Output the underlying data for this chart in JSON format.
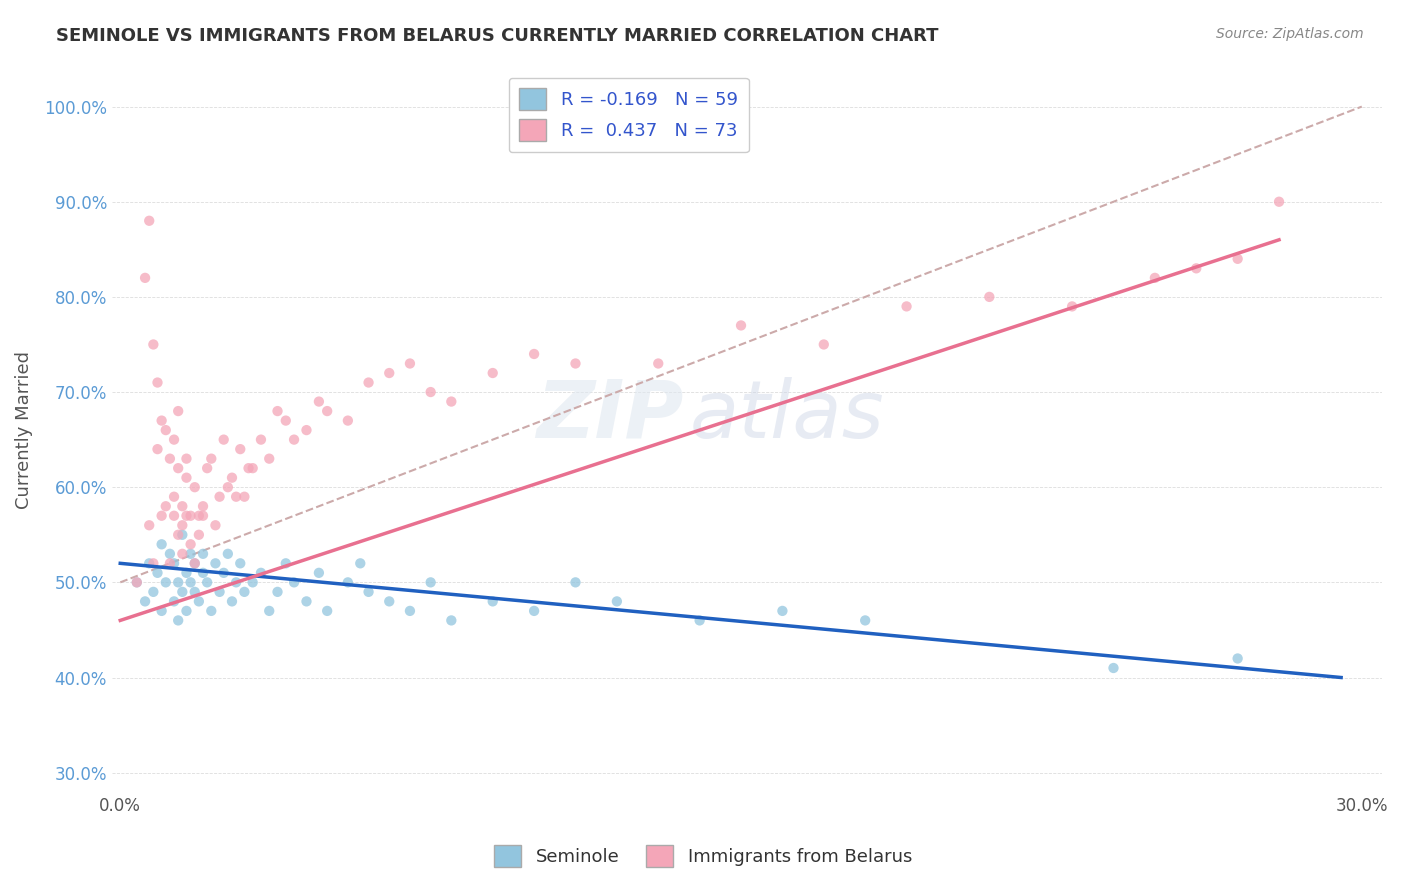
{
  "title": "SEMINOLE VS IMMIGRANTS FROM BELARUS CURRENTLY MARRIED CORRELATION CHART",
  "source_text": "Source: ZipAtlas.com",
  "ylabel": "Currently Married",
  "xlim": [
    -0.002,
    0.305
  ],
  "ylim": [
    0.28,
    1.04
  ],
  "legend1_label": "R = -0.169   N = 59",
  "legend2_label": "R =  0.437   N = 73",
  "seminole_color": "#92C5DE",
  "belarus_color": "#F4A6B8",
  "blue_line_color": "#2060C0",
  "pink_line_color": "#E87090",
  "dash_line_color": "#CCAAAA",
  "watermark_zip": "ZIP",
  "watermark_atlas": "atlas",
  "blue_scatter_x": [
    0.004,
    0.006,
    0.007,
    0.008,
    0.009,
    0.01,
    0.01,
    0.011,
    0.012,
    0.013,
    0.013,
    0.014,
    0.014,
    0.015,
    0.015,
    0.016,
    0.016,
    0.017,
    0.017,
    0.018,
    0.018,
    0.019,
    0.02,
    0.02,
    0.021,
    0.022,
    0.023,
    0.024,
    0.025,
    0.026,
    0.027,
    0.028,
    0.029,
    0.03,
    0.032,
    0.034,
    0.036,
    0.038,
    0.04,
    0.042,
    0.045,
    0.048,
    0.05,
    0.055,
    0.058,
    0.06,
    0.065,
    0.07,
    0.075,
    0.08,
    0.09,
    0.1,
    0.11,
    0.12,
    0.14,
    0.16,
    0.18,
    0.24,
    0.27
  ],
  "blue_scatter_y": [
    0.5,
    0.48,
    0.52,
    0.49,
    0.51,
    0.54,
    0.47,
    0.5,
    0.53,
    0.48,
    0.52,
    0.5,
    0.46,
    0.55,
    0.49,
    0.51,
    0.47,
    0.53,
    0.5,
    0.49,
    0.52,
    0.48,
    0.51,
    0.53,
    0.5,
    0.47,
    0.52,
    0.49,
    0.51,
    0.53,
    0.48,
    0.5,
    0.52,
    0.49,
    0.5,
    0.51,
    0.47,
    0.49,
    0.52,
    0.5,
    0.48,
    0.51,
    0.47,
    0.5,
    0.52,
    0.49,
    0.48,
    0.47,
    0.5,
    0.46,
    0.48,
    0.47,
    0.5,
    0.48,
    0.46,
    0.47,
    0.46,
    0.41,
    0.42
  ],
  "pink_scatter_x": [
    0.004,
    0.006,
    0.007,
    0.007,
    0.008,
    0.008,
    0.009,
    0.009,
    0.01,
    0.01,
    0.011,
    0.011,
    0.012,
    0.012,
    0.013,
    0.013,
    0.013,
    0.014,
    0.014,
    0.014,
    0.015,
    0.015,
    0.015,
    0.016,
    0.016,
    0.016,
    0.017,
    0.017,
    0.018,
    0.018,
    0.019,
    0.019,
    0.02,
    0.02,
    0.021,
    0.022,
    0.023,
    0.024,
    0.025,
    0.026,
    0.027,
    0.028,
    0.029,
    0.03,
    0.031,
    0.032,
    0.034,
    0.036,
    0.038,
    0.04,
    0.042,
    0.045,
    0.048,
    0.05,
    0.055,
    0.06,
    0.065,
    0.07,
    0.075,
    0.08,
    0.09,
    0.1,
    0.11,
    0.13,
    0.15,
    0.17,
    0.19,
    0.21,
    0.23,
    0.25,
    0.26,
    0.27,
    0.28
  ],
  "pink_scatter_y": [
    0.5,
    0.82,
    0.56,
    0.88,
    0.75,
    0.52,
    0.71,
    0.64,
    0.57,
    0.67,
    0.58,
    0.66,
    0.52,
    0.63,
    0.57,
    0.59,
    0.65,
    0.55,
    0.62,
    0.68,
    0.53,
    0.58,
    0.56,
    0.61,
    0.57,
    0.63,
    0.57,
    0.54,
    0.52,
    0.6,
    0.55,
    0.57,
    0.57,
    0.58,
    0.62,
    0.63,
    0.56,
    0.59,
    0.65,
    0.6,
    0.61,
    0.59,
    0.64,
    0.59,
    0.62,
    0.62,
    0.65,
    0.63,
    0.68,
    0.67,
    0.65,
    0.66,
    0.69,
    0.68,
    0.67,
    0.71,
    0.72,
    0.73,
    0.7,
    0.69,
    0.72,
    0.74,
    0.73,
    0.73,
    0.77,
    0.75,
    0.79,
    0.8,
    0.79,
    0.82,
    0.83,
    0.84,
    0.9
  ]
}
